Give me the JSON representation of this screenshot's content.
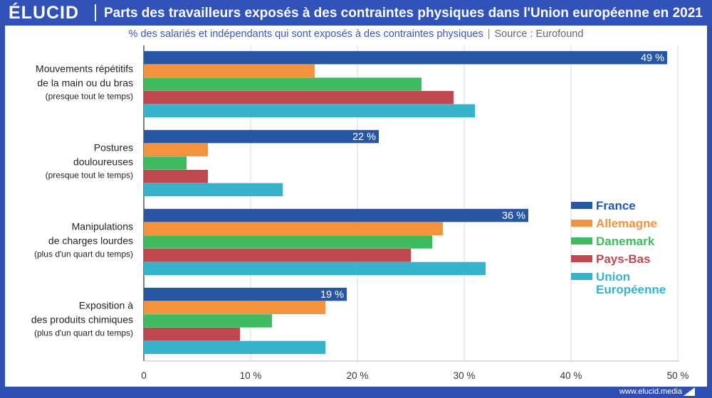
{
  "brand": {
    "logo_text": "ÉLUCID",
    "url": "www.elucid.media"
  },
  "header": {
    "title": "Parts des travailleurs exposés à des contraintes physiques dans l'Union européenne en 2021"
  },
  "subtitle": {
    "text": "% des salariés et indépendants qui sont exposés à des contraintes physiques",
    "separator": "|",
    "source": "Source : Eurofound"
  },
  "chart_data": {
    "type": "bar",
    "orientation": "horizontal",
    "categories": [
      [
        "Mouvements répétitifs",
        "de la main ou du bras",
        "(presque tout le temps)"
      ],
      [
        "Postures",
        "douloureuses",
        "(presque tout le temps)"
      ],
      [
        "Manipulations",
        "de charges lourdes",
        "(plus d'un quart du temps)"
      ],
      [
        "Exposition à",
        "des produits chimiques",
        "(plus d'un quart du temps)"
      ]
    ],
    "series": [
      {
        "name": "France",
        "color": "#2756a4",
        "values": [
          49,
          22,
          36,
          19
        ],
        "data_labels": [
          "49 %",
          "22 %",
          "36 %",
          "19 %"
        ]
      },
      {
        "name": "Allemagne",
        "color": "#f5923e",
        "values": [
          16,
          6,
          28,
          17
        ]
      },
      {
        "name": "Danemark",
        "color": "#3dbb5e",
        "values": [
          26,
          4,
          27,
          12
        ]
      },
      {
        "name": "Pays-Bas",
        "color": "#c0474f",
        "values": [
          29,
          6,
          25,
          9
        ]
      },
      {
        "name": "Union Européenne",
        "legend_lines": [
          "Union",
          "Européenne"
        ],
        "color": "#36b3cb",
        "values": [
          31,
          13,
          32,
          17
        ]
      }
    ],
    "xlim": [
      0,
      50
    ],
    "xticks": [
      0,
      10,
      20,
      30,
      40,
      50
    ],
    "xtick_labels": [
      "0",
      "10 %",
      "20 %",
      "30 %",
      "40 %",
      "50 %"
    ],
    "grid": true,
    "legend_position": "right"
  }
}
